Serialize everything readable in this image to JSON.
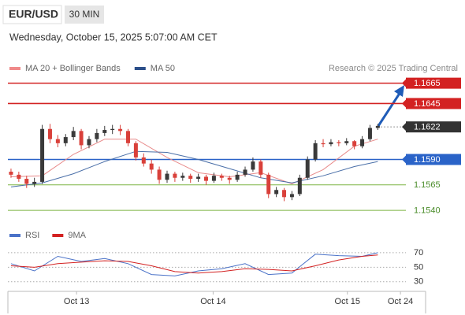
{
  "header": {
    "symbol": "EUR/USD",
    "timeframe": "30 MIN",
    "datetime": "Wednesday, October 15, 2025 5:07:00 AM CET",
    "source": "Research © 2025 Trading Central"
  },
  "chart_data": {
    "type": "candlestick",
    "legend": [
      {
        "name": "MA 20 + Bollinger Bands",
        "color": "#f08a8a"
      },
      {
        "name": "MA 50",
        "color": "#2c4f8a"
      }
    ],
    "up_color": "#3a3a3a",
    "down_color": "#d9403a",
    "xlim": [
      -0.4,
      50.6
    ],
    "xticks": [
      {
        "value": 8.4,
        "label": "Oct 13"
      },
      {
        "value": 25.9,
        "label": "Oct 14"
      },
      {
        "value": 43.1,
        "label": "Oct 15"
      },
      {
        "value": 49.9,
        "label": "Oct 24"
      }
    ],
    "ylim": [
      1.153,
      1.1674
    ],
    "candles": [
      [
        1.1578,
        1.1581,
        1.1572,
        1.1575
      ],
      [
        1.1575,
        1.1578,
        1.1568,
        1.1571
      ],
      [
        1.1571,
        1.1574,
        1.1562,
        1.1566
      ],
      [
        1.1566,
        1.1572,
        1.1563,
        1.1568
      ],
      [
        1.1568,
        1.1624,
        1.1566,
        1.162
      ],
      [
        1.162,
        1.1625,
        1.1606,
        1.161
      ],
      [
        1.161,
        1.1614,
        1.1602,
        1.1606
      ],
      [
        1.1606,
        1.1615,
        1.1603,
        1.1612
      ],
      [
        1.1612,
        1.1622,
        1.1609,
        1.1618
      ],
      [
        1.1618,
        1.162,
        1.16,
        1.1604
      ],
      [
        1.1604,
        1.1613,
        1.1601,
        1.161
      ],
      [
        1.161,
        1.162,
        1.1607,
        1.1616
      ],
      [
        1.1616,
        1.1623,
        1.1613,
        1.1619
      ],
      [
        1.1619,
        1.1624,
        1.1615,
        1.162
      ],
      [
        1.162,
        1.1624,
        1.1614,
        1.1618
      ],
      [
        1.1618,
        1.162,
        1.1603,
        1.1606
      ],
      [
        1.1606,
        1.1608,
        1.1589,
        1.1592
      ],
      [
        1.1592,
        1.1596,
        1.1583,
        1.1586
      ],
      [
        1.1586,
        1.159,
        1.1576,
        1.158
      ],
      [
        1.158,
        1.1583,
        1.1566,
        1.157
      ],
      [
        1.157,
        1.1579,
        1.1567,
        1.1576
      ],
      [
        1.1576,
        1.1578,
        1.1568,
        1.1572
      ],
      [
        1.1572,
        1.1577,
        1.1569,
        1.1574
      ],
      [
        1.1574,
        1.1576,
        1.1567,
        1.1571
      ],
      [
        1.1571,
        1.1576,
        1.1568,
        1.1573
      ],
      [
        1.1573,
        1.1575,
        1.1565,
        1.1569
      ],
      [
        1.1569,
        1.1577,
        1.1567,
        1.1574
      ],
      [
        1.1574,
        1.1576,
        1.1569,
        1.1572
      ],
      [
        1.1572,
        1.1574,
        1.1566,
        1.157
      ],
      [
        1.157,
        1.1578,
        1.1568,
        1.1575
      ],
      [
        1.1575,
        1.1583,
        1.1573,
        1.158
      ],
      [
        1.158,
        1.1592,
        1.1578,
        1.1588
      ],
      [
        1.1588,
        1.159,
        1.1572,
        1.1575
      ],
      [
        1.1575,
        1.1577,
        1.1552,
        1.1556
      ],
      [
        1.1556,
        1.1563,
        1.1553,
        1.156
      ],
      [
        1.156,
        1.1562,
        1.1549,
        1.1553
      ],
      [
        1.1553,
        1.1559,
        1.155,
        1.1556
      ],
      [
        1.1556,
        1.1575,
        1.1554,
        1.1572
      ],
      [
        1.1572,
        1.1593,
        1.157,
        1.159
      ],
      [
        1.159,
        1.1609,
        1.1588,
        1.1606
      ],
      [
        1.1606,
        1.161,
        1.1602,
        1.1605
      ],
      [
        1.1605,
        1.161,
        1.1603,
        1.1607
      ],
      [
        1.1607,
        1.1609,
        1.1603,
        1.1606
      ],
      [
        1.1606,
        1.1611,
        1.1604,
        1.1608
      ],
      [
        1.1608,
        1.1609,
        1.16,
        1.1603
      ],
      [
        1.1603,
        1.1613,
        1.1601,
        1.161
      ],
      [
        1.161,
        1.1624,
        1.1608,
        1.1621
      ],
      [
        1.1621,
        1.1625,
        1.1619,
        1.1623
      ]
    ],
    "series": [
      {
        "name": "MA 20",
        "color": "#e88a8a",
        "x": [
          0,
          4,
          8,
          12,
          16,
          20,
          24,
          28,
          32,
          36,
          40,
          44,
          47
        ],
        "values": [
          1.1573,
          1.1574,
          1.1595,
          1.161,
          1.161,
          1.1592,
          1.1577,
          1.1573,
          1.1577,
          1.1566,
          1.158,
          1.1603,
          1.161
        ]
      },
      {
        "name": "MA 50",
        "color": "#4a6fa8",
        "x": [
          0,
          4,
          8,
          12,
          16,
          20,
          24,
          28,
          32,
          36,
          40,
          44,
          47
        ],
        "values": [
          1.1563,
          1.1567,
          1.1576,
          1.1588,
          1.1598,
          1.1597,
          1.159,
          1.1581,
          1.1572,
          1.1567,
          1.1574,
          1.1583,
          1.1588
        ]
      }
    ],
    "levels": [
      {
        "price": 1.1665,
        "color": "#d32222",
        "boxed": true
      },
      {
        "price": 1.1645,
        "color": "#d32222",
        "boxed": true
      },
      {
        "price": 1.1622,
        "color": "#333333",
        "boxed": true,
        "dotted": true
      },
      {
        "price": {
          "value": 1.159,
          "label": "1.1590"
        },
        "color": "#2a63c8",
        "boxed": true
      },
      {
        "price": 1.1565,
        "color": "#7cb342",
        "boxed": false
      },
      {
        "price": {
          "value": 1.154,
          "label": "1.1540"
        },
        "color": "#7cb342",
        "boxed": false
      }
    ],
    "rsi": {
      "ylim": [
        20,
        90
      ],
      "yticks": [
        30,
        50,
        70
      ],
      "series": [
        {
          "name": "RSI",
          "color": "#4a72c8",
          "x": [
            0,
            3,
            6,
            9,
            12,
            15,
            18,
            21,
            24,
            27,
            30,
            33,
            36,
            39,
            42,
            45,
            47
          ],
          "values": [
            55,
            45,
            65,
            58,
            62,
            55,
            40,
            38,
            45,
            48,
            55,
            40,
            42,
            68,
            66,
            65,
            70
          ]
        },
        {
          "name": "9MA",
          "color": "#d32222",
          "x": [
            0,
            3,
            6,
            9,
            12,
            15,
            18,
            21,
            24,
            27,
            30,
            33,
            36,
            39,
            42,
            45,
            47
          ],
          "values": [
            52,
            50,
            55,
            57,
            59,
            58,
            52,
            44,
            42,
            44,
            48,
            47,
            45,
            52,
            60,
            65,
            67
          ]
        }
      ]
    }
  }
}
